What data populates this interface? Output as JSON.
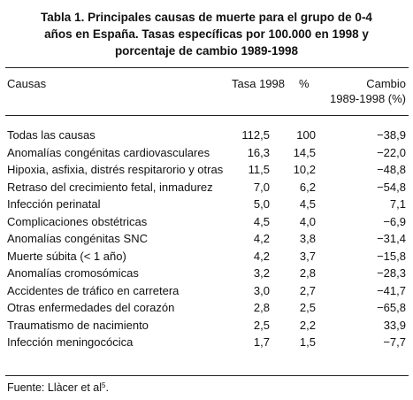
{
  "title": {
    "line1": "Tabla 1. Principales causas de muerte para el grupo de 0-4",
    "line2": "años en España. Tasas específicas por 100.000 en 1998 y",
    "line3": "porcentaje de cambio 1989-1998"
  },
  "columns": {
    "causas": "Causas",
    "tasa": "Tasa 1998",
    "pct": "%",
    "cambio_line1": "Cambio",
    "cambio_line2": "1989-1998 (%)"
  },
  "rows": [
    {
      "causa": "Todas las causas",
      "tasa": "112,5",
      "pct": "100",
      "cambio": "−38,9"
    },
    {
      "causa": "Anomalías congénitas cardiovasculares",
      "tasa": "16,3",
      "pct": "14,5",
      "cambio": "−22,0"
    },
    {
      "causa": "Hipoxia, asfixia, distrés respitarorio y otras",
      "tasa": "11,5",
      "pct": "10,2",
      "cambio": "−48,8"
    },
    {
      "causa": "Retraso del crecimiento fetal, inmadurez",
      "tasa": "7,0",
      "pct": "6,2",
      "cambio": "−54,8"
    },
    {
      "causa": "Infección perinatal",
      "tasa": "5,0",
      "pct": "4,5",
      "cambio": "7,1"
    },
    {
      "causa": "Complicaciones obstétricas",
      "tasa": "4,5",
      "pct": "4,0",
      "cambio": "−6,9"
    },
    {
      "causa": "Anomalías congénitas SNC",
      "tasa": "4,2",
      "pct": "3,8",
      "cambio": "−31,4"
    },
    {
      "causa": "Muerte súbita (< 1 año)",
      "tasa": "4,2",
      "pct": "3,7",
      "cambio": "−15,8"
    },
    {
      "causa": "Anomalías cromosómicas",
      "tasa": "3,2",
      "pct": "2,8",
      "cambio": "−28,3"
    },
    {
      "causa": "Accidentes de tráfico en carretera",
      "tasa": "3,0",
      "pct": "2,7",
      "cambio": "−41,7"
    },
    {
      "causa": "Otras enfermedades del corazón",
      "tasa": "2,8",
      "pct": "2,5",
      "cambio": "−65,8"
    },
    {
      "causa": "Traumatismo de nacimiento",
      "tasa": "2,5",
      "pct": "2,2",
      "cambio": "33,9"
    },
    {
      "causa": "Infección meningocócica",
      "tasa": "1,7",
      "pct": "1,5",
      "cambio": "−7,7"
    }
  ],
  "footer": {
    "text": "Fuente: Llàcer et al",
    "ref": "5",
    "end": "."
  }
}
